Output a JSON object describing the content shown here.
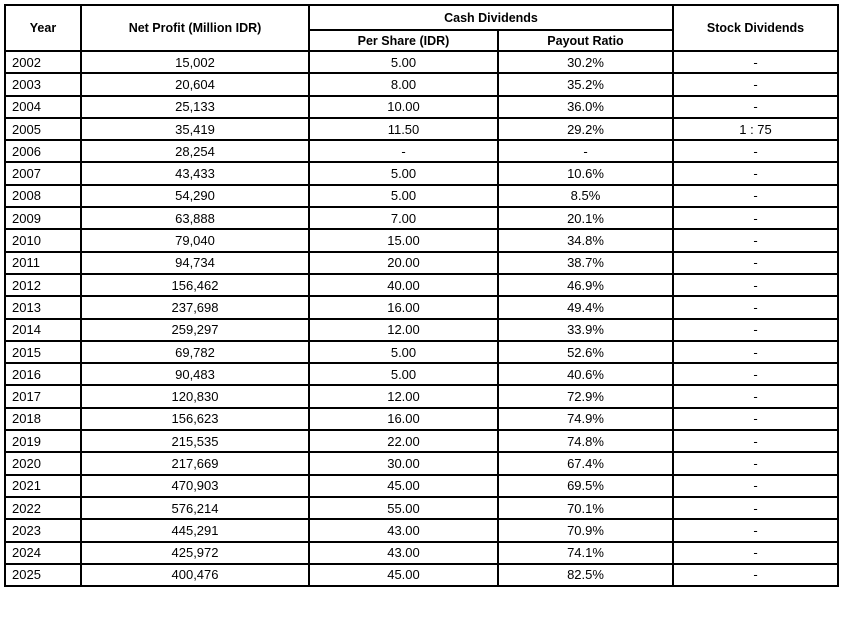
{
  "table": {
    "headers": {
      "year": "Year",
      "net_profit": "Net Profit (Million IDR)",
      "cash_dividends": "Cash Dividends",
      "per_share": "Per Share (IDR)",
      "payout_ratio": "Payout Ratio",
      "stock_dividends": "Stock Dividends"
    },
    "rows": [
      [
        "2002",
        "15,002",
        "5.00",
        "30.2%",
        "-"
      ],
      [
        "2003",
        "20,604",
        "8.00",
        "35.2%",
        "-"
      ],
      [
        "2004",
        "25,133",
        "10.00",
        "36.0%",
        "-"
      ],
      [
        "2005",
        "35,419",
        "11.50",
        "29.2%",
        "1 : 75"
      ],
      [
        "2006",
        "28,254",
        "-",
        "-",
        "-"
      ],
      [
        "2007",
        "43,433",
        "5.00",
        "10.6%",
        "-"
      ],
      [
        "2008",
        "54,290",
        "5.00",
        "8.5%",
        "-"
      ],
      [
        "2009",
        "63,888",
        "7.00",
        "20.1%",
        "-"
      ],
      [
        "2010",
        "79,040",
        "15.00",
        "34.8%",
        "-"
      ],
      [
        "2011",
        "94,734",
        "20.00",
        "38.7%",
        "-"
      ],
      [
        "2012",
        "156,462",
        "40.00",
        "46.9%",
        "-"
      ],
      [
        "2013",
        "237,698",
        "16.00",
        "49.4%",
        "-"
      ],
      [
        "2014",
        "259,297",
        "12.00",
        "33.9%",
        "-"
      ],
      [
        "2015",
        "69,782",
        "5.00",
        "52.6%",
        "-"
      ],
      [
        "2016",
        "90,483",
        "5.00",
        "40.6%",
        "-"
      ],
      [
        "2017",
        "120,830",
        "12.00",
        "72.9%",
        "-"
      ],
      [
        "2018",
        "156,623",
        "16.00",
        "74.9%",
        "-"
      ],
      [
        "2019",
        "215,535",
        "22.00",
        "74.8%",
        "-"
      ],
      [
        "2020",
        "217,669",
        "30.00",
        "67.4%",
        "-"
      ],
      [
        "2021",
        "470,903",
        "45.00",
        "69.5%",
        "-"
      ],
      [
        "2022",
        "576,214",
        "55.00",
        "70.1%",
        "-"
      ],
      [
        "2023",
        "445,291",
        "43.00",
        "70.9%",
        "-"
      ],
      [
        "2024",
        "425,972",
        "43.00",
        "74.1%",
        "-"
      ],
      [
        "2025",
        "400,476",
        "45.00",
        "82.5%",
        "-"
      ]
    ]
  }
}
